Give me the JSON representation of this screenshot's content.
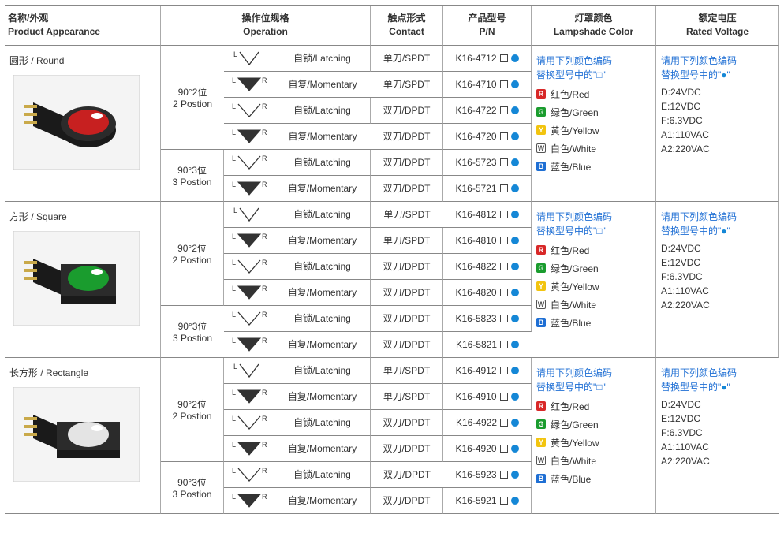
{
  "columns": {
    "c1_cn": "名称/外观",
    "c1_en": "Product Appearance",
    "c2_cn": "操作位规格",
    "c2_en": "Operation",
    "c3_cn": "触点形式",
    "c3_en": "Contact",
    "c4_cn": "产品型号",
    "c4_en": "P/N",
    "c5_cn": "灯罩颜色",
    "c5_en": "Lampshade Color",
    "c6_cn": "额定电压",
    "c6_en": "Rated Voltage"
  },
  "positions": {
    "p2_cn": "90°2位",
    "p2_en": "2 Postion",
    "p3_cn": "90°3位",
    "p3_en": "3 Postion"
  },
  "operation_labels": {
    "latching": "自锁/Latching",
    "momentary": "自复/Momentary"
  },
  "contact_labels": {
    "spdt": "单刀/SPDT",
    "dpdt": "双刀/DPDT"
  },
  "shapes": [
    {
      "title": "圆形 / Round",
      "photo_color": "#c72020",
      "photo_form": "round",
      "rows": [
        {
          "pos": "2",
          "sym": "L",
          "op": "latching",
          "ct": "spdt",
          "pn": "K16-4712"
        },
        {
          "pos": "2",
          "sym": "LR-fill",
          "op": "momentary",
          "ct": "spdt",
          "pn": "K16-4710"
        },
        {
          "pos": "2",
          "sym": "LR",
          "op": "latching",
          "ct": "dpdt",
          "pn": "K16-4722"
        },
        {
          "pos": "2",
          "sym": "LR-fill",
          "op": "momentary",
          "ct": "dpdt",
          "pn": "K16-4720"
        },
        {
          "pos": "3",
          "sym": "LR",
          "op": "latching",
          "ct": "dpdt",
          "pn": "K16-5723"
        },
        {
          "pos": "3",
          "sym": "LR-fill",
          "op": "momentary",
          "ct": "dpdt",
          "pn": "K16-5721"
        }
      ]
    },
    {
      "title": "方形 / Square",
      "photo_color": "#1a9c2e",
      "photo_form": "square",
      "rows": [
        {
          "pos": "2",
          "sym": "L",
          "op": "latching",
          "ct": "spdt",
          "pn": "K16-4812"
        },
        {
          "pos": "2",
          "sym": "LR-fill",
          "op": "momentary",
          "ct": "spdt",
          "pn": "K16-4810"
        },
        {
          "pos": "2",
          "sym": "LR",
          "op": "latching",
          "ct": "dpdt",
          "pn": "K16-4822"
        },
        {
          "pos": "2",
          "sym": "LR-fill",
          "op": "momentary",
          "ct": "dpdt",
          "pn": "K16-4820"
        },
        {
          "pos": "3",
          "sym": "LR",
          "op": "latching",
          "ct": "dpdt",
          "pn": "K16-5823"
        },
        {
          "pos": "3",
          "sym": "LR-fill",
          "op": "momentary",
          "ct": "dpdt",
          "pn": "K16-5821"
        }
      ]
    },
    {
      "title": "长方形 / Rectangle",
      "photo_color": "#e4e4e4",
      "photo_form": "rect",
      "rows": [
        {
          "pos": "2",
          "sym": "L",
          "op": "latching",
          "ct": "spdt",
          "pn": "K16-4912"
        },
        {
          "pos": "2",
          "sym": "LR-fill",
          "op": "momentary",
          "ct": "spdt",
          "pn": "K16-4910"
        },
        {
          "pos": "2",
          "sym": "LR",
          "op": "latching",
          "ct": "dpdt",
          "pn": "K16-4922"
        },
        {
          "pos": "2",
          "sym": "LR-fill",
          "op": "momentary",
          "ct": "dpdt",
          "pn": "K16-4920"
        },
        {
          "pos": "3",
          "sym": "LR",
          "op": "latching",
          "ct": "dpdt",
          "pn": "K16-5923"
        },
        {
          "pos": "3",
          "sym": "LR-fill",
          "op": "momentary",
          "ct": "dpdt",
          "pn": "K16-5921"
        }
      ]
    }
  ],
  "pn_dot_color": "#1587d6",
  "lampshade": {
    "intro_l1": "请用下列颜色编码",
    "intro_l2": "替换型号中的\"□\"",
    "colors": [
      {
        "abbr": "R",
        "bg": "#d82828",
        "en": "Red",
        "cn": "红色",
        "hollow": false
      },
      {
        "abbr": "G",
        "bg": "#1a9c2e",
        "en": "Green",
        "cn": "绿色",
        "hollow": false
      },
      {
        "abbr": "Y",
        "bg": "#f2c40f",
        "en": "Yellow",
        "cn": "黄色",
        "hollow": false
      },
      {
        "abbr": "W",
        "bg": "#ffffff",
        "en": "White",
        "cn": "白色",
        "hollow": true
      },
      {
        "abbr": "B",
        "bg": "#1f6fd4",
        "en": "Blue",
        "cn": "蓝色",
        "hollow": false
      }
    ]
  },
  "voltage": {
    "intro_l1": "请用下列颜色编码",
    "intro_l2": "替换型号中的\"●\"",
    "values": [
      {
        "k": "D",
        "v": "24VDC"
      },
      {
        "k": "E",
        "v": "12VDC"
      },
      {
        "k": "F",
        "v": "6.3VDC"
      },
      {
        "k": "A1",
        "v": "110VAC"
      },
      {
        "k": "A2",
        "v": "220VAC"
      }
    ]
  },
  "svg_styles": {
    "stroke": "#333",
    "fill_momentary": "#333"
  }
}
